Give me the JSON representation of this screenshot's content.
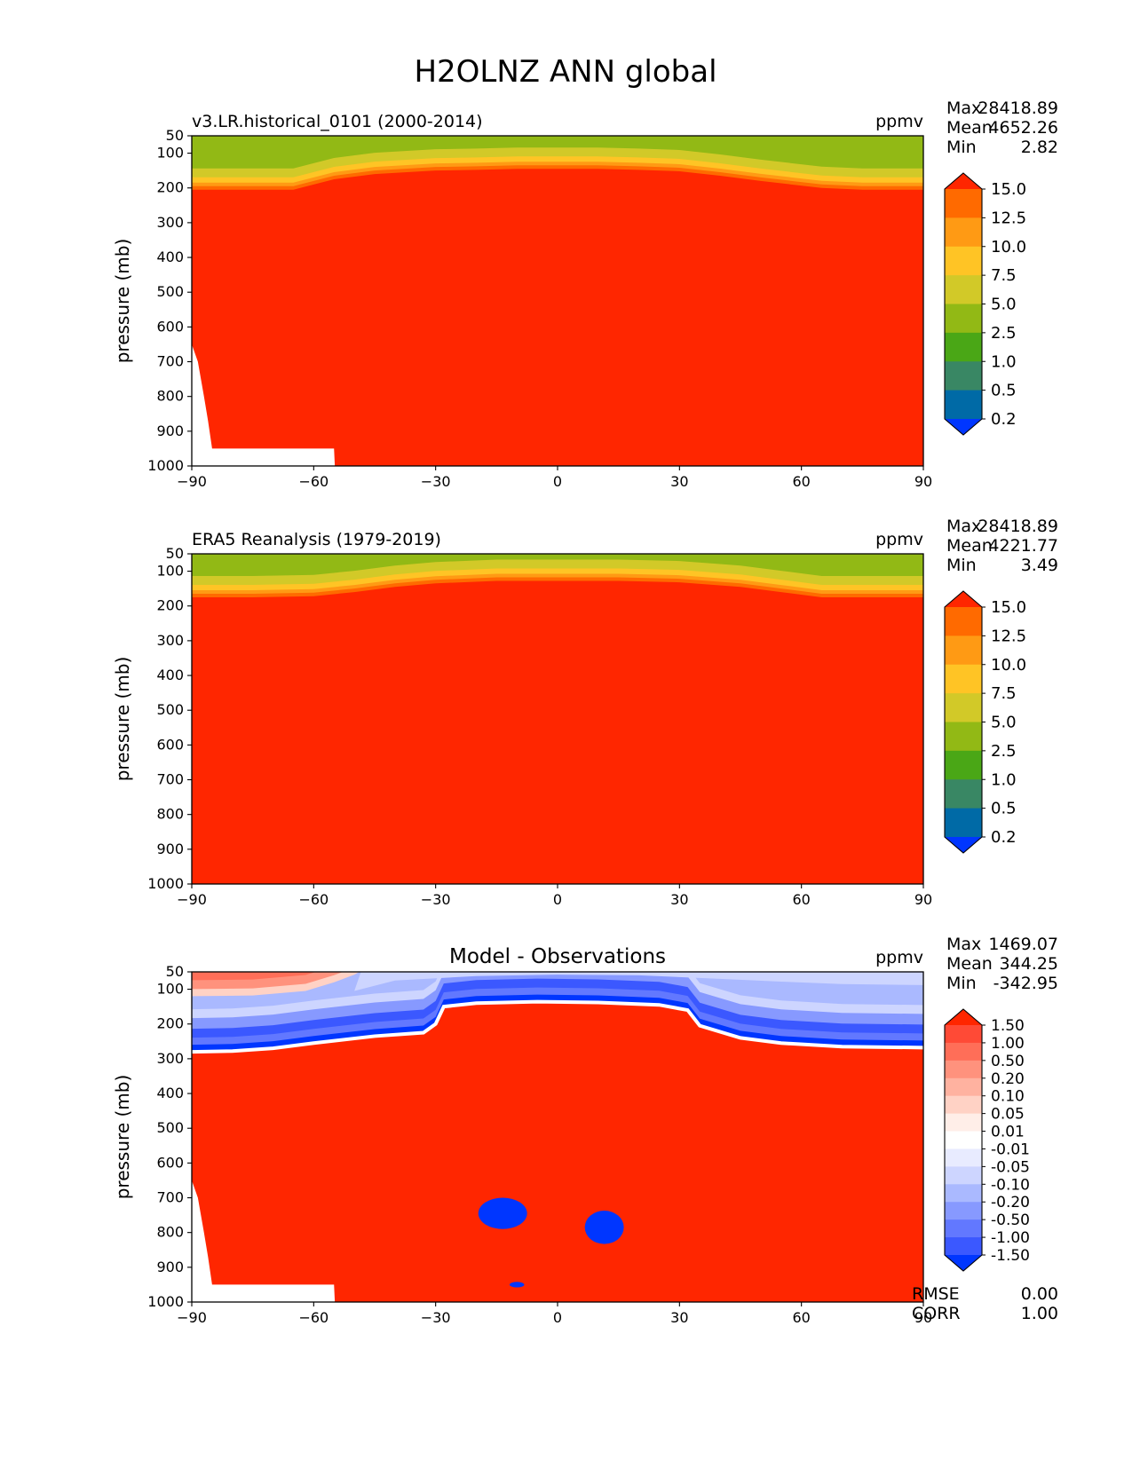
{
  "figure_title": "H2OLNZ ANN global",
  "chart_data": [
    {
      "type": "contour",
      "panel": "model",
      "title_left": "v3.LR.historical_0101 (2000-2014)",
      "title_center": "",
      "units": "ppmv",
      "xlabel": "",
      "ylabel": "pressure (mb)",
      "xlim": [
        -90,
        90
      ],
      "ylim": [
        1000,
        50
      ],
      "xticks": [
        "−90",
        "−60",
        "−30",
        "0",
        "30",
        "60",
        "90"
      ],
      "yticks": [
        "50",
        "100",
        "200",
        "300",
        "400",
        "500",
        "600",
        "700",
        "800",
        "900",
        "1000"
      ],
      "stats": {
        "max_label": "Max",
        "max": "28418.89",
        "mean_label": "Mean",
        "mean": "4652.26",
        "min_label": "Min",
        "min": "2.82"
      },
      "colorbar": {
        "levels": [
          "15.0",
          "12.5",
          "10.0",
          "7.5",
          "5.0",
          "2.5",
          "1.0",
          "0.5",
          "0.2"
        ],
        "colors": [
          "#ff2600",
          "#ff6a00",
          "#ff9a14",
          "#ffc425",
          "#d2c928",
          "#92b915",
          "#4aa716",
          "#398764",
          "#006aa6",
          "#0036ff"
        ]
      },
      "tropopause_hPa": [
        [
          -90,
          205
        ],
        [
          -75,
          205
        ],
        [
          -65,
          205
        ],
        [
          -55,
          175
        ],
        [
          -45,
          160
        ],
        [
          -30,
          150
        ],
        [
          -20,
          148
        ],
        [
          -10,
          145
        ],
        [
          0,
          145
        ],
        [
          10,
          145
        ],
        [
          20,
          148
        ],
        [
          30,
          152
        ],
        [
          40,
          165
        ],
        [
          50,
          180
        ],
        [
          65,
          200
        ],
        [
          75,
          205
        ],
        [
          90,
          205
        ]
      ],
      "topo_hPa": [
        [
          -90,
          650
        ],
        [
          -88.5,
          700
        ],
        [
          -87,
          800
        ],
        [
          -86,
          870
        ],
        [
          -85,
          950
        ],
        [
          -55,
          950
        ],
        [
          -54.8,
          1000
        ]
      ]
    },
    {
      "type": "contour",
      "panel": "observations",
      "title_left": "ERA5 Reanalysis (1979-2019)",
      "title_center": "",
      "units": "ppmv",
      "xlabel": "",
      "ylabel": "pressure (mb)",
      "xlim": [
        -90,
        90
      ],
      "ylim": [
        1000,
        50
      ],
      "xticks": [
        "−90",
        "−60",
        "−30",
        "0",
        "30",
        "60",
        "90"
      ],
      "yticks": [
        "50",
        "100",
        "200",
        "300",
        "400",
        "500",
        "600",
        "700",
        "800",
        "900",
        "1000"
      ],
      "stats": {
        "max_label": "Max",
        "max": "28418.89",
        "mean_label": "Mean",
        "mean": "4221.77",
        "min_label": "Min",
        "min": "3.49"
      },
      "colorbar": {
        "levels": [
          "15.0",
          "12.5",
          "10.0",
          "7.5",
          "5.0",
          "2.5",
          "1.0",
          "0.5",
          "0.2"
        ],
        "colors": [
          "#ff2600",
          "#ff6a00",
          "#ff9a14",
          "#ffc425",
          "#d2c928",
          "#92b915",
          "#4aa716",
          "#398764",
          "#006aa6",
          "#0036ff"
        ]
      },
      "tropopause_hPa": [
        [
          -90,
          175
        ],
        [
          -75,
          175
        ],
        [
          -60,
          172
        ],
        [
          -50,
          160
        ],
        [
          -40,
          145
        ],
        [
          -30,
          135
        ],
        [
          -15,
          128
        ],
        [
          0,
          128
        ],
        [
          15,
          128
        ],
        [
          30,
          132
        ],
        [
          45,
          145
        ],
        [
          55,
          160
        ],
        [
          65,
          175
        ],
        [
          90,
          175
        ]
      ],
      "topo_hPa": []
    },
    {
      "type": "contour",
      "panel": "difference",
      "title_left": "",
      "title_center": "Model - Observations",
      "units": "ppmv",
      "xlabel": "",
      "ylabel": "pressure (mb)",
      "xlim": [
        -90,
        90
      ],
      "ylim": [
        1000,
        50
      ],
      "xticks": [
        "−90",
        "−60",
        "−30",
        "0",
        "30",
        "60",
        "90"
      ],
      "yticks": [
        "50",
        "100",
        "200",
        "300",
        "400",
        "500",
        "600",
        "700",
        "800",
        "900",
        "1000"
      ],
      "stats": {
        "max_label": "Max",
        "max": "1469.07",
        "mean_label": "Mean",
        "mean": "344.25",
        "min_label": "Min",
        "min": "-342.95"
      },
      "colorbar": {
        "levels": [
          "1.50",
          "1.00",
          "0.50",
          "0.20",
          "0.10",
          "0.05",
          "0.01",
          "-0.01",
          "-0.05",
          "-0.10",
          "-0.20",
          "-0.50",
          "-1.00",
          "-1.50"
        ],
        "colors": [
          "#ff2600",
          "#ff4a36",
          "#ff6e58",
          "#ff927d",
          "#ffb2a0",
          "#ffd2c5",
          "#ffeee8",
          "#ffffff",
          "#e8ebff",
          "#cdd5ff",
          "#aab9ff",
          "#8799ff",
          "#6278ff",
          "#3b58ff",
          "#0036ff"
        ]
      },
      "rmse_label": "RMSE",
      "rmse": "0.00",
      "corr_label": "CORR",
      "corr": "1.00",
      "positive_bottom_hPa": [
        [
          -90,
          280
        ],
        [
          -80,
          278
        ],
        [
          -70,
          270
        ],
        [
          -60,
          255
        ],
        [
          -45,
          235
        ],
        [
          -33,
          225
        ],
        [
          -30,
          200
        ],
        [
          -28,
          150
        ],
        [
          -20,
          140
        ],
        [
          -5,
          136
        ],
        [
          10,
          138
        ],
        [
          25,
          145
        ],
        [
          32,
          160
        ],
        [
          35,
          205
        ],
        [
          45,
          240
        ],
        [
          55,
          255
        ],
        [
          70,
          265
        ],
        [
          90,
          268
        ]
      ],
      "blue_top_hPa": [
        [
          -90,
          190
        ],
        [
          -75,
          190
        ],
        [
          -60,
          150
        ],
        [
          -50,
          105
        ],
        [
          -40,
          75
        ],
        [
          -20,
          62
        ],
        [
          0,
          58
        ],
        [
          20,
          60
        ],
        [
          40,
          70
        ],
        [
          55,
          78
        ],
        [
          70,
          85
        ],
        [
          90,
          88
        ]
      ],
      "negative_blobs": [
        {
          "lon": -13.5,
          "p": 745,
          "rlon": 6.0,
          "rp": 45
        },
        {
          "lon": 11.5,
          "p": 785,
          "rlon": 4.8,
          "rp": 48
        },
        {
          "lon": -10.0,
          "p": 950,
          "rlon": 1.8,
          "rp": 8
        }
      ],
      "topo_hPa": [
        [
          -90,
          650
        ],
        [
          -88.5,
          700
        ],
        [
          -87,
          800
        ],
        [
          -86,
          870
        ],
        [
          -85,
          950
        ],
        [
          -55,
          950
        ],
        [
          -54.8,
          1000
        ]
      ]
    }
  ]
}
